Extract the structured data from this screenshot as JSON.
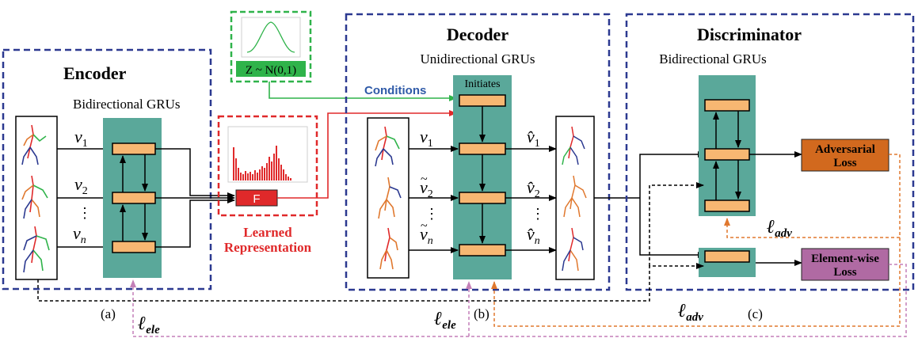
{
  "encoder": {
    "title": "Encoder",
    "subtitle": "Bidirectional GRUs",
    "inputs": [
      "v",
      "v",
      "v"
    ],
    "input_subs": [
      "1",
      "2",
      "n"
    ],
    "dots": "⋮",
    "caption": "(a)"
  },
  "noise": {
    "label": "Z ~ N(0,1)"
  },
  "learned": {
    "block_label": "F",
    "caption_line1": "Learned",
    "caption_line2": "Representation"
  },
  "decoder": {
    "title": "Decoder",
    "subtitle": "Unidirectional GRUs",
    "initiates": "Initiates",
    "conditions": "Conditions",
    "inputs": [
      "v",
      "v",
      "v"
    ],
    "input_subs": [
      "1",
      "2",
      "n"
    ],
    "outputs": [
      "v̂",
      "v̂",
      "v̂"
    ],
    "output_subs": [
      "1",
      "2",
      "n"
    ],
    "dots": "⋮",
    "caption": "(b)"
  },
  "discriminator": {
    "title": "Discriminator",
    "subtitle": "Bidirectional GRUs",
    "adv_loss_line1": "Adversarial",
    "adv_loss_line2": "Loss",
    "ele_loss_line1": "Element-wise",
    "ele_loss_line2": "Loss",
    "caption": "(c)"
  },
  "loss_labels": {
    "ell": "ℓ",
    "ele": "ele",
    "adv": "adv"
  },
  "colors": {
    "blue_border": "#2b3990",
    "green_border": "#2fb34a",
    "red_border": "#e0292a",
    "teal": "#5aa89a",
    "gru_cell": "#f7b772",
    "adv_loss": "#d2691e",
    "ele_loss": "#b06aa3",
    "orange_dash": "#e0782e",
    "pink_dash": "#c47fb8",
    "conditions_text": "#2f5aa8"
  }
}
